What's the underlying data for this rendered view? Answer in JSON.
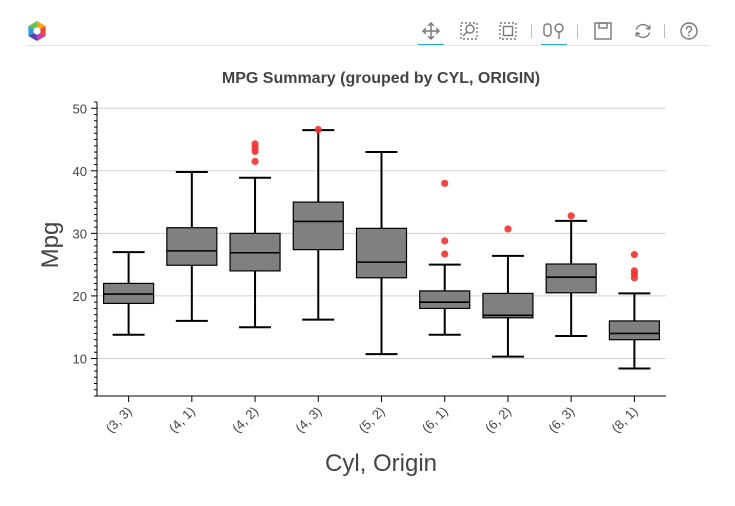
{
  "toolbar": {
    "logo_icon": "bokeh-logo-icon",
    "tools": [
      {
        "name": "pan-tool",
        "icon": "move-cross-icon",
        "active": true
      },
      {
        "name": "box-zoom-tool",
        "icon": "box-zoom-icon",
        "active": false
      },
      {
        "name": "box-select-tool",
        "icon": "box-select-icon",
        "active": false
      },
      {
        "name": "resize-tool",
        "icon": "resize-icon",
        "active": true
      },
      {
        "name": "save-tool",
        "icon": "save-icon",
        "active": false
      },
      {
        "name": "reset-tool",
        "icon": "reset-icon",
        "active": false
      },
      {
        "name": "help-tool",
        "icon": "help-icon",
        "active": false
      }
    ]
  },
  "chart_data": {
    "type": "box",
    "title": "MPG Summary (grouped by CYL, ORIGIN)",
    "xlabel": "Cyl, Origin",
    "ylabel": "Mpg",
    "ylim": [
      4,
      51
    ],
    "yticks": [
      10,
      20,
      30,
      40,
      50
    ],
    "grid": true,
    "box_color": "#808080",
    "outlier_color": "#ee3333",
    "categories": [
      "(3, 3)",
      "(4, 1)",
      "(4, 2)",
      "(4, 3)",
      "(5, 2)",
      "(6, 1)",
      "(6, 2)",
      "(6, 3)",
      "(8, 1)"
    ],
    "boxes": [
      {
        "category": "(3, 3)",
        "whisker_low": 13.8,
        "q1": 18.8,
        "median": 20.3,
        "q3": 22.0,
        "whisker_high": 27.0,
        "outliers": []
      },
      {
        "category": "(4, 1)",
        "whisker_low": 16.0,
        "q1": 24.9,
        "median": 27.2,
        "q3": 30.9,
        "whisker_high": 39.8,
        "outliers": []
      },
      {
        "category": "(4, 2)",
        "whisker_low": 15.0,
        "q1": 24.0,
        "median": 26.9,
        "q3": 30.0,
        "whisker_high": 38.9,
        "outliers": [
          41.5,
          43.1,
          43.7,
          44.3
        ]
      },
      {
        "category": "(4, 3)",
        "whisker_low": 16.2,
        "q1": 27.4,
        "median": 31.9,
        "q3": 35.0,
        "whisker_high": 46.5,
        "outliers": [
          46.6
        ]
      },
      {
        "category": "(5, 2)",
        "whisker_low": 10.7,
        "q1": 22.9,
        "median": 25.4,
        "q3": 30.8,
        "whisker_high": 43.0,
        "outliers": []
      },
      {
        "category": "(6, 1)",
        "whisker_low": 13.8,
        "q1": 18.0,
        "median": 19.0,
        "q3": 20.8,
        "whisker_high": 25.0,
        "outliers": [
          26.7,
          28.8,
          38.0
        ]
      },
      {
        "category": "(6, 2)",
        "whisker_low": 10.3,
        "q1": 16.5,
        "median": 16.9,
        "q3": 20.4,
        "whisker_high": 26.4,
        "outliers": [
          30.7
        ]
      },
      {
        "category": "(6, 3)",
        "whisker_low": 13.6,
        "q1": 20.5,
        "median": 23.0,
        "q3": 25.1,
        "whisker_high": 32.0,
        "outliers": [
          32.8
        ]
      },
      {
        "category": "(8, 1)",
        "whisker_low": 8.4,
        "q1": 13.0,
        "median": 14.0,
        "q3": 16.0,
        "whisker_high": 20.4,
        "outliers": [
          22.9,
          23.5,
          24.0,
          26.6
        ]
      }
    ]
  }
}
